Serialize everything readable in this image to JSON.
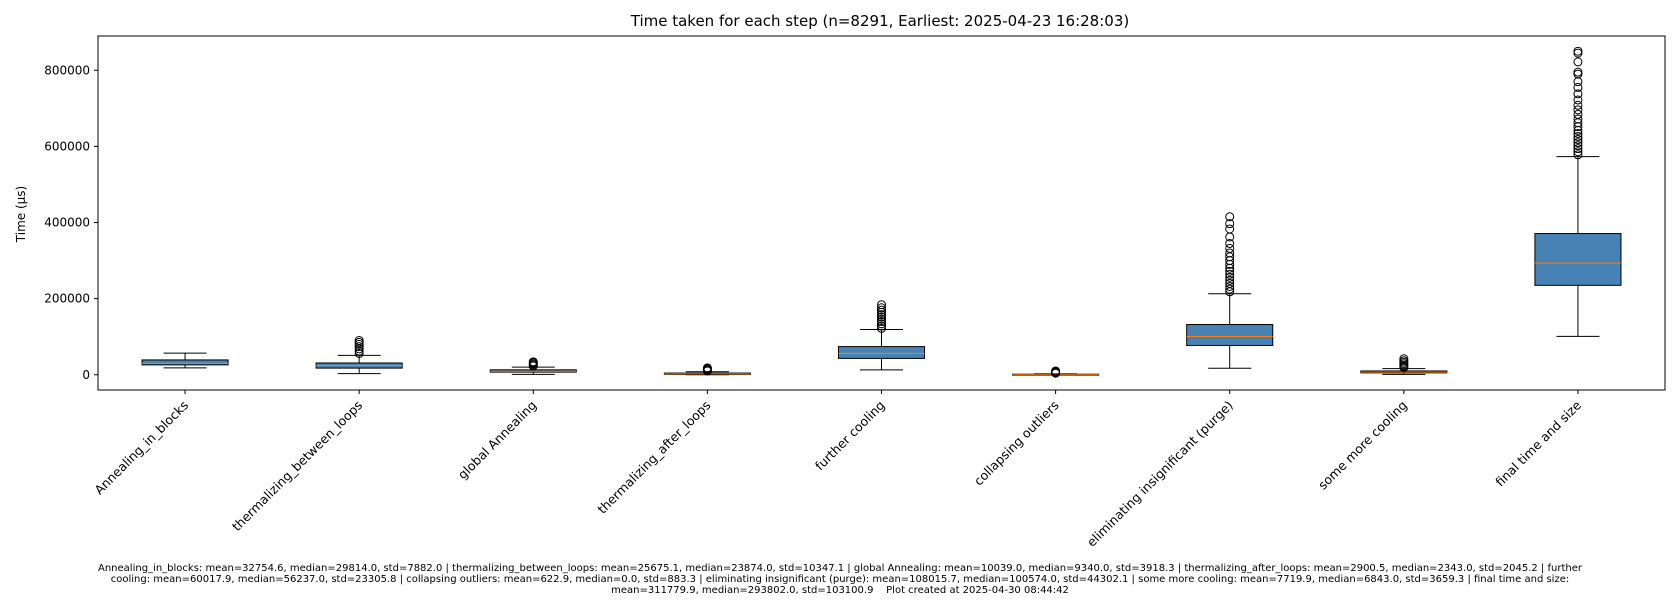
{
  "chart_data": {
    "type": "box",
    "title": "Time taken for each step (n=8291, Earliest: 2025-04-23 16:28:03)",
    "xlabel": "",
    "ylabel": "Time (µs)",
    "ylim": [
      -40000,
      890000
    ],
    "yticks": [
      0,
      200000,
      400000,
      600000,
      800000
    ],
    "ytick_labels": [
      "0",
      "200000",
      "400000",
      "600000",
      "800000"
    ],
    "grid": false,
    "box_color": "#4682b4",
    "median_color": "#ff7f0e",
    "categories": [
      "Annealing_in_blocks",
      "thermalizing_between_loops",
      "global Annealing",
      "thermalizing_after_loops",
      "further cooling",
      "collapsing outliers",
      "eliminating insignificant (purge)",
      "some more cooling",
      "final time and size"
    ],
    "boxes": [
      {
        "whisker_low": 18000,
        "q1": 26000,
        "median": 29814,
        "q3": 39000,
        "whisker_high": 57000,
        "outliers": []
      },
      {
        "whisker_low": 3000,
        "q1": 17500,
        "median": 23874,
        "q3": 31000,
        "whisker_high": 51000,
        "outliers": [
          56000,
          62000,
          68000,
          74000,
          80000,
          85000,
          90000
        ]
      },
      {
        "whisker_low": 1000,
        "q1": 7000,
        "median": 9340,
        "q3": 13000,
        "whisker_high": 20000,
        "outliers": [
          23000,
          26000,
          29000,
          32000,
          34000
        ]
      },
      {
        "whisker_low": 0,
        "q1": 1000,
        "median": 2343,
        "q3": 4500,
        "whisker_high": 8000,
        "outliers": [
          10000,
          12000,
          14000,
          16000,
          18000
        ]
      },
      {
        "whisker_low": 13000,
        "q1": 43000,
        "median": 56237,
        "q3": 74000,
        "whisker_high": 119000,
        "outliers": [
          122000,
          128000,
          134000,
          140000,
          146000,
          152000,
          158000,
          164000,
          170000,
          176000,
          184000
        ]
      },
      {
        "whisker_low": 0,
        "q1": 0,
        "median": 0,
        "q3": 1500,
        "whisker_high": 2500,
        "outliers": [
          4000,
          6000,
          8000,
          10000
        ]
      },
      {
        "whisker_low": 17000,
        "q1": 77000,
        "median": 100574,
        "q3": 132000,
        "whisker_high": 213000,
        "outliers": [
          218000,
          225000,
          232000,
          240000,
          248000,
          256000,
          264000,
          272000,
          280000,
          290000,
          300000,
          310000,
          320000,
          332000,
          345000,
          362000,
          383000,
          397000,
          415000
        ]
      },
      {
        "whisker_low": 1000,
        "q1": 5000,
        "median": 6843,
        "q3": 10000,
        "whisker_high": 16000,
        "outliers": [
          19000,
          22000,
          25000,
          29000,
          33000,
          37000,
          42000
        ]
      },
      {
        "whisker_low": 101000,
        "q1": 235000,
        "median": 293802,
        "q3": 371000,
        "whisker_high": 573000,
        "outliers": [
          578000,
          586000,
          594000,
          602000,
          610000,
          618000,
          626000,
          634000,
          642000,
          652000,
          662000,
          672000,
          684000,
          696000,
          708000,
          722000,
          738000,
          755000,
          770000,
          790000,
          795000,
          822000,
          845000,
          850000
        ]
      }
    ],
    "annotation_lines": [
      "Annealing_in_blocks: mean=32754.6, median=29814.0, std=7882.0 | thermalizing_between_loops: mean=25675.1, median=23874.0, std=10347.1 | global Annealing: mean=10039.0, median=9340.0, std=3918.3 | thermalizing_after_loops: mean=2900.5, median=2343.0, std=2045.2 | further",
      "cooling: mean=60017.9, median=56237.0, std=23305.8 | collapsing outliers: mean=622.9, median=0.0, std=883.3 | eliminating insignificant (purge): mean=108015.7, median=100574.0, std=44302.1 | some more cooling: mean=7719.9, median=6843.0, std=3659.3 | final time and size:",
      "mean=311779.9, median=293802.0, std=103100.9"
    ],
    "created_text": "Plot created at 2025-04-30 08:44:42"
  }
}
